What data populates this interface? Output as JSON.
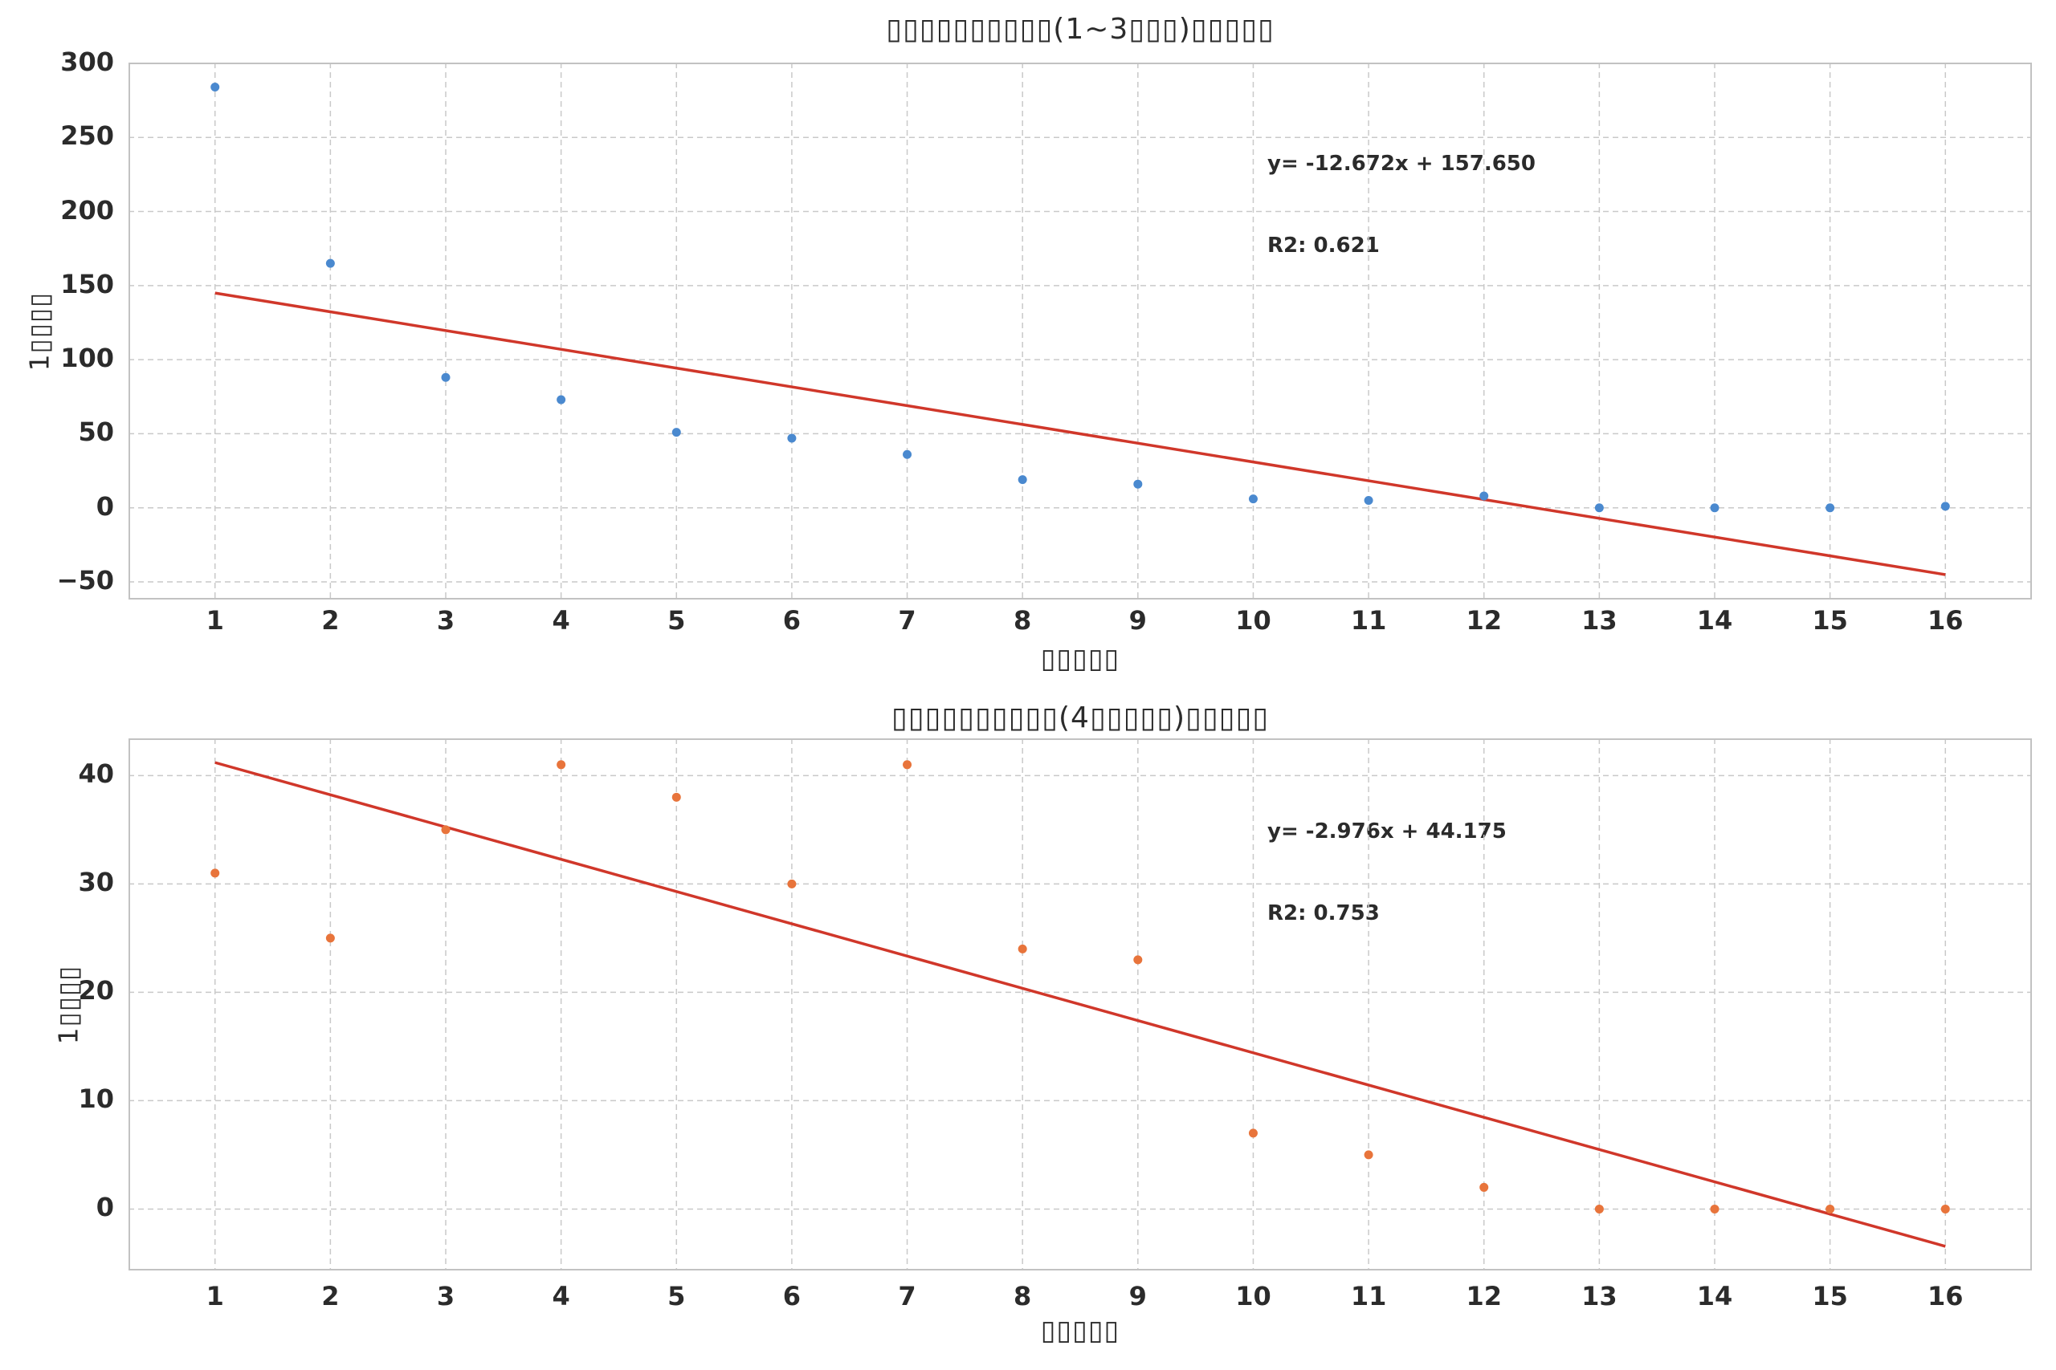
{
  "figure": {
    "background": "#ffffff"
  },
  "chart_data": [
    {
      "type": "scatter",
      "title": "▯▯▯▯▯▯▯▯▯▯(1~3▯▯▯)▯▯▯▯▯",
      "xlabel": "▯▯▯▯▯",
      "ylabel": "1▯▯▯▯",
      "x": [
        1,
        2,
        3,
        4,
        5,
        6,
        7,
        8,
        9,
        10,
        11,
        12,
        13,
        14,
        15,
        16
      ],
      "y": [
        284,
        165,
        88,
        73,
        51,
        47,
        36,
        19,
        16,
        6,
        5,
        8,
        0,
        0,
        0,
        1
      ],
      "point_color": "#4a89cf",
      "trend": {
        "slope": -12.672,
        "intercept": 157.65,
        "x_start": 1,
        "x_end": 16,
        "color": "#d0372a"
      },
      "annotation": {
        "equation": "y= -12.672x + 157.650",
        "r2": "R2: 0.621"
      },
      "xlim": [
        0.25,
        16.75
      ],
      "ylim": [
        -61.9,
        300.5
      ],
      "xticks": [
        1,
        2,
        3,
        4,
        5,
        6,
        7,
        8,
        9,
        10,
        11,
        12,
        13,
        14,
        15,
        16
      ],
      "xtick_labels": [
        "1",
        "2",
        "3",
        "4",
        "5",
        "6",
        "7",
        "8",
        "9",
        "10",
        "11",
        "12",
        "13",
        "14",
        "15",
        "16"
      ],
      "yticks": [
        300,
        250,
        200,
        150,
        100,
        50,
        0,
        -50
      ],
      "ytick_labels": [
        "300",
        "250",
        "200",
        "150",
        "100",
        "50",
        "0",
        "−50"
      ],
      "grid": "dashed",
      "legend": null
    },
    {
      "type": "scatter",
      "title": "▯▯▯▯▯▯▯▯▯▯(4▯▯▯▯▯)▯▯▯▯▯",
      "xlabel": "▯▯▯▯▯",
      "ylabel": "1▯▯▯▯",
      "x": [
        1,
        2,
        3,
        4,
        5,
        6,
        7,
        8,
        9,
        10,
        11,
        12,
        13,
        14,
        15,
        16
      ],
      "y": [
        31,
        25,
        35,
        41,
        38,
        30,
        41,
        24,
        23,
        7,
        5,
        2,
        0,
        0,
        0,
        0
      ],
      "point_color": "#e8743b",
      "trend": {
        "slope": -2.976,
        "intercept": 44.175,
        "x_start": 1,
        "x_end": 16,
        "color": "#d0372a"
      },
      "annotation": {
        "equation": "y= -2.976x + 44.175",
        "r2": "R2: 0.753"
      },
      "xlim": [
        0.25,
        16.75
      ],
      "ylim": [
        -5.67,
        43.43
      ],
      "xticks": [
        1,
        2,
        3,
        4,
        5,
        6,
        7,
        8,
        9,
        10,
        11,
        12,
        13,
        14,
        15,
        16
      ],
      "xtick_labels": [
        "1",
        "2",
        "3",
        "4",
        "5",
        "6",
        "7",
        "8",
        "9",
        "10",
        "11",
        "12",
        "13",
        "14",
        "15",
        "16"
      ],
      "yticks": [
        40,
        30,
        20,
        10,
        0
      ],
      "ytick_labels": [
        "40",
        "30",
        "20",
        "10",
        "0"
      ],
      "grid": "dashed",
      "legend": null
    }
  ]
}
